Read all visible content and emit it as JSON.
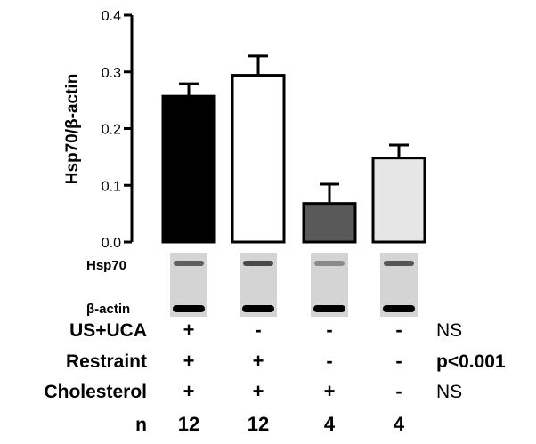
{
  "chart_data": {
    "type": "bar",
    "ylabel": "Hsp70/β-actin",
    "ylim": [
      0,
      0.4
    ],
    "yticks": [
      "0.0",
      "0.1",
      "0.2",
      "0.3",
      "0.4"
    ],
    "ytick_values": [
      0,
      0.1,
      0.2,
      0.3,
      0.4
    ],
    "bars": [
      {
        "value": 0.257,
        "error": 0.022,
        "color": "#000000"
      },
      {
        "value": 0.294,
        "error": 0.034,
        "color": "#ffffff"
      },
      {
        "value": 0.068,
        "error": 0.034,
        "color": "#595959"
      },
      {
        "value": 0.148,
        "error": 0.023,
        "color": "#e6e6e6"
      }
    ]
  },
  "blot": {
    "hsp70_label": "Hsp70",
    "actin_label": "β-actin",
    "hsp70_intensity": [
      0.55,
      0.65,
      0.35,
      0.6
    ],
    "actin_intensity": [
      1.0,
      1.0,
      1.0,
      1.0
    ]
  },
  "table": {
    "rows": [
      {
        "label": "US+UCA",
        "cells": [
          "+",
          "-",
          "-",
          "-"
        ],
        "sig": "NS",
        "sig_bold": false
      },
      {
        "label": "Restraint",
        "cells": [
          "+",
          "+",
          "-",
          "-"
        ],
        "sig": "p<0.001",
        "sig_bold": true
      },
      {
        "label": "Cholesterol",
        "cells": [
          "+",
          "+",
          "+",
          "-"
        ],
        "sig": "NS",
        "sig_bold": false
      },
      {
        "label": "n",
        "cells": [
          "12",
          "12",
          "4",
          "4"
        ],
        "sig": "",
        "sig_bold": false
      }
    ]
  }
}
